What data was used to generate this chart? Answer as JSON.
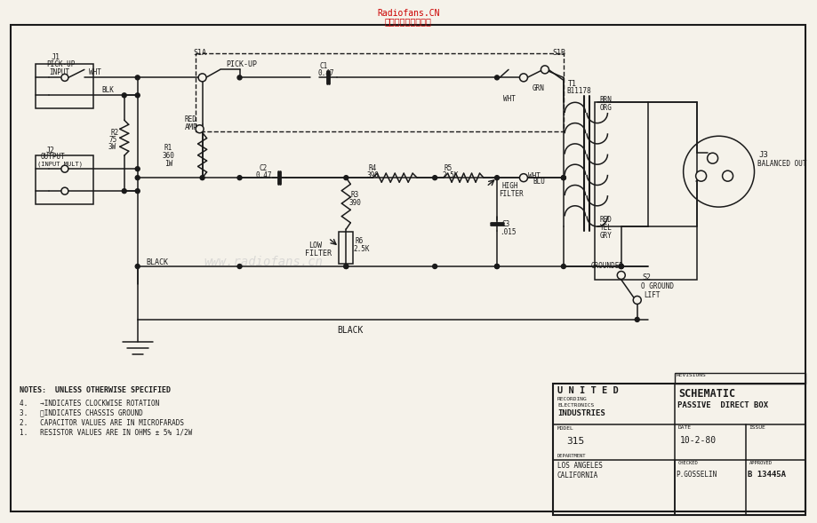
{
  "bg_color": "#f5f2ea",
  "line_color": "#1a1a1a",
  "title_line1": "Radiofans.CN",
  "title_line2": "收音机爱好者资料库",
  "watermark": "www.radiofans.cn",
  "company1": "U N I T E D",
  "company2": "RECORDING\nELECTRONICS",
  "company3": "INDUSTRIES",
  "schematic1": "SCHEMATIC",
  "schematic2": "PASSIVE  DIRECT BOX",
  "model_label": "MODEL",
  "model_val": "315",
  "dept_label": "DEPARTMENT",
  "date_label": "DATE",
  "date_val": "10-2-80",
  "issue_label": "ISSUE",
  "checked_label": "CHECKED",
  "checked_val": "P.GOSSELIN",
  "approved_label": "APPROVED",
  "approved_val": "B 13445A",
  "location_val": "LOS ANGELES\nCALIFORNIA",
  "revisions_label": "REVISIONS",
  "note0": "NOTES:  UNLESS OTHERWISE SPECIFIED",
  "note1": "4.   →INDICATES CLOCKWISE ROTATION",
  "note2": "3.   ℵINDICATES CHASSIS GROUND",
  "note3": "2.   CAPACITOR VALUES ARE IN MICROFARADS",
  "note4": "1.   RESISTOR VALUES ARE IN OHMS ± 5% 1/2W"
}
